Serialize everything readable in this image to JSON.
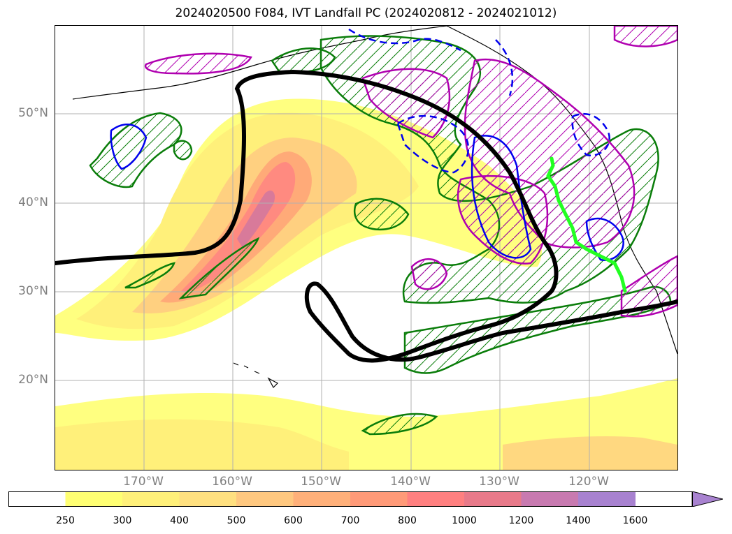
{
  "title": "2024020500 F084, IVT Landfall PC (2024020812 - 2024021012)",
  "lat_labels": [
    "50°N",
    "40°N",
    "30°N",
    "20°N"
  ],
  "lon_labels": [
    "170°W",
    "160°W",
    "150°W",
    "140°W",
    "130°W",
    "120°W"
  ],
  "colorbar": {
    "ticks": [
      "250",
      "300",
      "400",
      "500",
      "600",
      "700",
      "800",
      "1000",
      "1200",
      "1400",
      "1600"
    ],
    "colors": [
      "#ffffff",
      "#ffff73",
      "#fff07a",
      "#ffe080",
      "#ffc880",
      "#ffb07a",
      "#ff9a78",
      "#ff8080",
      "#e87a8a",
      "#c87ab0",
      "#a882d0"
    ],
    "extend": "max"
  },
  "contours": {
    "black_line_color": "#000000",
    "green_hatch_color": "#0a7d0a",
    "magenta_hatch_color": "#b000b0",
    "blue_color": "#0000ee",
    "bright_green_track_color": "#22ff22"
  }
}
